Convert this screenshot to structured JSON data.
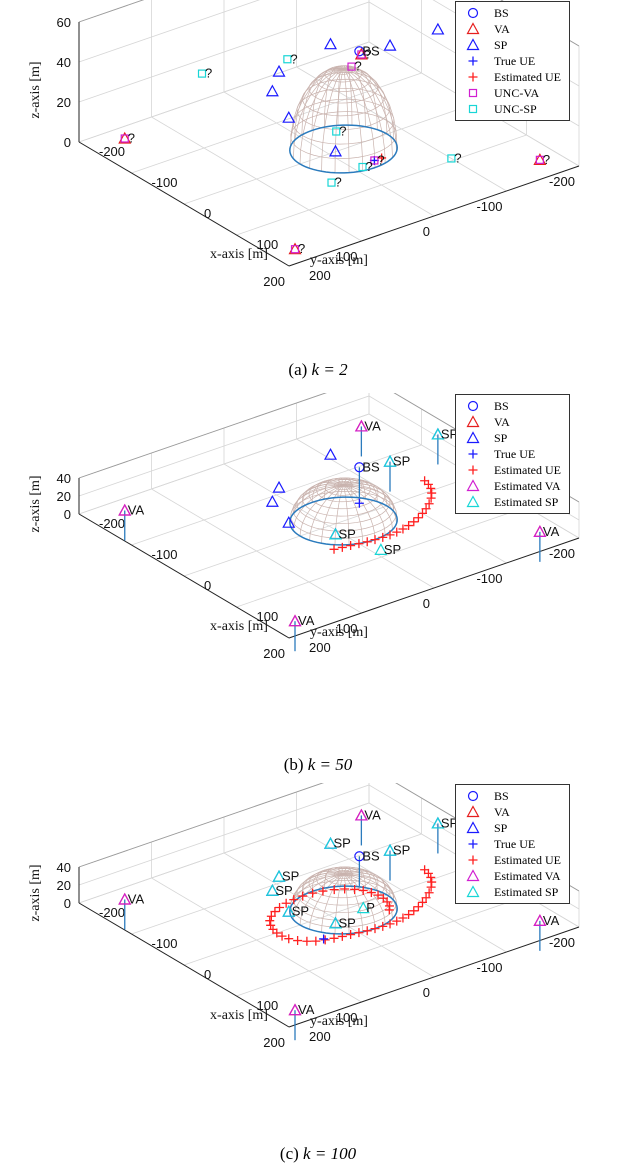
{
  "colors": {
    "BS": "#1a1aff",
    "VA": "#e61e1e",
    "SP": "#1a1aff",
    "TrueUE": "#1a1aff",
    "EstUE": "#ff2020",
    "EstVA": "#d11ed1",
    "EstSP": "#18d6d6",
    "UNCVA": "#d11ed1",
    "UNCSP": "#18d6d6",
    "dome": "#c9b3ae",
    "ring": "#2b7bbd",
    "pole": "#2b7bbd",
    "grid": "#d6d6d6",
    "axis": "#222222"
  },
  "captions": [
    {
      "label": "(a)",
      "math": "k = 2"
    },
    {
      "label": "(b)",
      "math": "k = 50"
    },
    {
      "label": "(c)",
      "math": "k = 100"
    }
  ],
  "chart_data": [
    {
      "type": "scatter3d",
      "xlabel": "x-axis [m]",
      "ylabel": "y-axis [m]",
      "zlabel": "z-axis [m]",
      "xlim": [
        -200,
        200
      ],
      "ylim": [
        -200,
        200
      ],
      "zlim": [
        0,
        60
      ],
      "x_ticks": [
        "-200",
        "-100",
        "0",
        "100",
        "200"
      ],
      "y_ticks": [
        "-200",
        "-100",
        "0",
        "100",
        "200"
      ],
      "z_ticks": [
        "0",
        "20",
        "40",
        "60"
      ],
      "legend": [
        "BS",
        "VA",
        "SP",
        "True UE",
        "Estimated UE",
        "UNC-VA",
        "UNC-SP"
      ],
      "legend_kinds": [
        "BS",
        "VA",
        "SP",
        "TrueUE",
        "EstUE",
        "UNCVA",
        "UNCSP"
      ],
      "annotation": "?",
      "points": [
        {
          "kind": "BS",
          "x": -25,
          "y": -60,
          "z": 40,
          "label": "BS"
        },
        {
          "kind": "VA",
          "x": -180,
          "y": -175,
          "z": 0
        },
        {
          "kind": "VA",
          "x": 170,
          "y": 170,
          "z": 0
        },
        {
          "kind": "VA",
          "x": -175,
          "y": 155,
          "z": 0
        },
        {
          "kind": "VA",
          "x": 160,
          "y": -175,
          "z": 0
        },
        {
          "kind": "SP",
          "x": -15,
          "y": -95,
          "z": 40
        },
        {
          "kind": "SP",
          "x": -40,
          "y": 40,
          "z": 40
        },
        {
          "kind": "SP",
          "x": -25,
          "y": 60,
          "z": 35
        },
        {
          "kind": "SP",
          "x": 20,
          "y": 70,
          "z": 30
        },
        {
          "kind": "SP",
          "x": -80,
          "y": -60,
          "z": 35
        },
        {
          "kind": "SP",
          "x": -55,
          "y": -190,
          "z": 30
        },
        {
          "kind": "SP",
          "x": 40,
          "y": 20,
          "z": 10
        },
        {
          "kind": "TrueUE",
          "x": 45,
          "y": -30,
          "z": 0
        },
        {
          "kind": "EstUE",
          "x": 45,
          "y": -40,
          "z": 0
        },
        {
          "kind": "UNCVA",
          "x": -180,
          "y": -175,
          "z": 0,
          "label": "?"
        },
        {
          "kind": "UNCVA",
          "x": 170,
          "y": 170,
          "z": 0,
          "label": "?"
        },
        {
          "kind": "UNCVA",
          "x": -175,
          "y": 155,
          "z": 0,
          "label": "?"
        },
        {
          "kind": "UNCVA",
          "x": 160,
          "y": -175,
          "z": 0,
          "label": "?"
        },
        {
          "kind": "UNCVA",
          "x": 45,
          "y": -30,
          "z": 0,
          "label": "?"
        },
        {
          "kind": "UNCVA",
          "x": -40,
          "y": -60,
          "z": 30,
          "label": "?"
        },
        {
          "kind": "UNCSP",
          "x": -100,
          "y": -15,
          "z": 30,
          "label": "?"
        },
        {
          "kind": "UNCSP",
          "x": -90,
          "y": 110,
          "z": 40,
          "label": "?"
        },
        {
          "kind": "UNCSP",
          "x": 0,
          "y": -10,
          "z": 10,
          "label": "?"
        },
        {
          "kind": "UNCSP",
          "x": 50,
          "y": -10,
          "z": 0,
          "label": "?"
        },
        {
          "kind": "UNCSP",
          "x": 95,
          "y": -100,
          "z": 0,
          "label": "?"
        },
        {
          "kind": "UNCSP",
          "x": 60,
          "y": 40,
          "z": 0,
          "label": "?"
        }
      ],
      "poles": [],
      "ue_true_track": [],
      "ue_est_track": []
    },
    {
      "type": "scatter3d",
      "xlabel": "x-axis [m]",
      "ylabel": "y-axis [m]",
      "zlabel": "z-axis [m]",
      "xlim": [
        -200,
        200
      ],
      "ylim": [
        -200,
        200
      ],
      "zlim": [
        0,
        40
      ],
      "x_ticks": [
        "-200",
        "-100",
        "0",
        "100",
        "200"
      ],
      "y_ticks": [
        "-200",
        "-100",
        "0",
        "100",
        "200"
      ],
      "z_ticks": [
        "0",
        "20",
        "40"
      ],
      "legend": [
        "BS",
        "VA",
        "SP",
        "True UE",
        "Estimated UE",
        "Estimated VA",
        "Estimated SP"
      ],
      "legend_kinds": [
        "BS",
        "VA",
        "SP",
        "TrueUE",
        "EstUE",
        "EstVA",
        "EstSP"
      ],
      "points": [
        {
          "kind": "BS",
          "x": -25,
          "y": -60,
          "z": 40,
          "label": "BS"
        },
        {
          "kind": "VA",
          "x": -180,
          "y": -175,
          "z": 0
        },
        {
          "kind": "VA",
          "x": 170,
          "y": 170,
          "z": 0
        },
        {
          "kind": "VA",
          "x": -175,
          "y": 155,
          "z": 0
        },
        {
          "kind": "VA",
          "x": 160,
          "y": -175,
          "z": 0
        },
        {
          "kind": "SP",
          "x": -15,
          "y": -95,
          "z": 40
        },
        {
          "kind": "SP",
          "x": -40,
          "y": 40,
          "z": 40
        },
        {
          "kind": "SP",
          "x": -25,
          "y": 60,
          "z": 35
        },
        {
          "kind": "SP",
          "x": 20,
          "y": 70,
          "z": 30
        },
        {
          "kind": "SP",
          "x": -80,
          "y": -60,
          "z": 35
        },
        {
          "kind": "SP",
          "x": -55,
          "y": -190,
          "z": 30
        },
        {
          "kind": "SP",
          "x": 40,
          "y": 20,
          "z": 10
        },
        {
          "kind": "EstVA",
          "x": -180,
          "y": -175,
          "z": 0,
          "label": "VA"
        },
        {
          "kind": "EstVA",
          "x": 170,
          "y": 170,
          "z": 0,
          "label": "VA"
        },
        {
          "kind": "EstVA",
          "x": -175,
          "y": 155,
          "z": 0,
          "label": "VA"
        },
        {
          "kind": "EstVA",
          "x": 160,
          "y": -175,
          "z": 0,
          "label": "VA"
        },
        {
          "kind": "EstSP",
          "x": -15,
          "y": -95,
          "z": 40,
          "label": "SP"
        },
        {
          "kind": "EstSP",
          "x": -55,
          "y": -190,
          "z": 30,
          "label": "SP"
        },
        {
          "kind": "EstSP",
          "x": 40,
          "y": 20,
          "z": 10,
          "label": "SP"
        },
        {
          "kind": "EstSP",
          "x": 85,
          "y": -10,
          "z": 0,
          "label": "SP"
        }
      ],
      "poles": [
        {
          "x": -180,
          "y": -175,
          "z": 0
        },
        {
          "x": 170,
          "y": 170,
          "z": 0
        },
        {
          "x": -175,
          "y": 155,
          "z": 0
        },
        {
          "x": 160,
          "y": -175,
          "z": 0
        },
        {
          "x": -25,
          "y": -60,
          "z": 40
        },
        {
          "x": -55,
          "y": -190,
          "z": 30
        },
        {
          "x": -15,
          "y": -95,
          "z": 40
        }
      ],
      "ue_true_track": [
        [
          -25,
          -60,
          0
        ]
      ],
      "ue_est_track": [
        [
          -25,
          -150,
          0
        ],
        [
          -15,
          -148,
          0
        ],
        [
          -5,
          -144,
          0
        ],
        [
          5,
          -138,
          0
        ],
        [
          15,
          -130,
          0
        ],
        [
          25,
          -120,
          0
        ],
        [
          33,
          -110,
          0
        ],
        [
          40,
          -100,
          0
        ],
        [
          46,
          -90,
          0
        ],
        [
          51,
          -80,
          0
        ],
        [
          55,
          -70,
          0
        ],
        [
          58,
          -60,
          0
        ],
        [
          60,
          -50,
          0
        ],
        [
          61,
          -40,
          0
        ],
        [
          61,
          -30,
          0
        ],
        [
          60,
          -20,
          0
        ],
        [
          59,
          -10,
          0
        ],
        [
          57,
          0,
          0
        ],
        [
          55,
          10,
          0
        ],
        [
          53,
          20,
          0
        ],
        [
          51,
          30,
          0
        ]
      ]
    },
    {
      "type": "scatter3d",
      "xlabel": "x-axis [m]",
      "ylabel": "y-axis [m]",
      "zlabel": "z-axis [m]",
      "xlim": [
        -200,
        200
      ],
      "ylim": [
        -200,
        200
      ],
      "zlim": [
        0,
        40
      ],
      "x_ticks": [
        "-200",
        "-100",
        "0",
        "100",
        "200"
      ],
      "y_ticks": [
        "-200",
        "-100",
        "0",
        "100",
        "200"
      ],
      "z_ticks": [
        "0",
        "20",
        "40"
      ],
      "legend": [
        "BS",
        "VA",
        "SP",
        "True UE",
        "Estimated UE",
        "Estimated VA",
        "Estimated SP"
      ],
      "legend_kinds": [
        "BS",
        "VA",
        "SP",
        "TrueUE",
        "EstUE",
        "EstVA",
        "EstSP"
      ],
      "points": [
        {
          "kind": "BS",
          "x": -25,
          "y": -60,
          "z": 40,
          "label": "BS"
        },
        {
          "kind": "VA",
          "x": -180,
          "y": -175,
          "z": 0
        },
        {
          "kind": "VA",
          "x": 170,
          "y": 170,
          "z": 0
        },
        {
          "kind": "VA",
          "x": -175,
          "y": 155,
          "z": 0
        },
        {
          "kind": "VA",
          "x": 160,
          "y": -175,
          "z": 0
        },
        {
          "kind": "SP",
          "x": -15,
          "y": -95,
          "z": 40
        },
        {
          "kind": "SP",
          "x": -40,
          "y": 40,
          "z": 40
        },
        {
          "kind": "SP",
          "x": -25,
          "y": 60,
          "z": 35
        },
        {
          "kind": "SP",
          "x": 20,
          "y": 70,
          "z": 30
        },
        {
          "kind": "SP",
          "x": -80,
          "y": -60,
          "z": 35
        },
        {
          "kind": "SP",
          "x": -55,
          "y": -190,
          "z": 30
        },
        {
          "kind": "SP",
          "x": 40,
          "y": 20,
          "z": 10
        },
        {
          "kind": "EstVA",
          "x": -180,
          "y": -175,
          "z": 0,
          "label": "VA"
        },
        {
          "kind": "EstVA",
          "x": 170,
          "y": 170,
          "z": 0,
          "label": "VA"
        },
        {
          "kind": "EstVA",
          "x": -175,
          "y": 155,
          "z": 0,
          "label": "VA"
        },
        {
          "kind": "EstVA",
          "x": 160,
          "y": -175,
          "z": 0,
          "label": "VA"
        },
        {
          "kind": "EstSP",
          "x": -15,
          "y": -95,
          "z": 40,
          "label": "SP"
        },
        {
          "kind": "EstSP",
          "x": -40,
          "y": 40,
          "z": 40,
          "label": "SP"
        },
        {
          "kind": "EstSP",
          "x": -25,
          "y": 60,
          "z": 35,
          "label": "SP"
        },
        {
          "kind": "EstSP",
          "x": -80,
          "y": -60,
          "z": 35,
          "label": "SP"
        },
        {
          "kind": "EstSP",
          "x": -55,
          "y": -190,
          "z": 30,
          "label": "SP"
        },
        {
          "kind": "EstSP",
          "x": 40,
          "y": 20,
          "z": 10,
          "label": "SP"
        },
        {
          "kind": "EstSP",
          "x": 20,
          "y": 70,
          "z": 30,
          "label": "SP"
        },
        {
          "kind": "EstSP",
          "x": 10,
          "y": -40,
          "z": 0,
          "label": "P"
        }
      ],
      "poles": [
        {
          "x": -180,
          "y": -175,
          "z": 0
        },
        {
          "x": 170,
          "y": 170,
          "z": 0
        },
        {
          "x": -175,
          "y": 155,
          "z": 0
        },
        {
          "x": 160,
          "y": -175,
          "z": 0
        },
        {
          "x": -25,
          "y": -60,
          "z": 40
        },
        {
          "x": -55,
          "y": -190,
          "z": 30
        },
        {
          "x": -15,
          "y": -95,
          "z": 40
        }
      ],
      "ue_true_track": [
        [
          45,
          40,
          0
        ]
      ],
      "ue_est_track": [
        [
          -25,
          -150,
          0
        ],
        [
          -15,
          -148,
          0
        ],
        [
          -5,
          -144,
          0
        ],
        [
          5,
          -138,
          0
        ],
        [
          15,
          -130,
          0
        ],
        [
          25,
          -120,
          0
        ],
        [
          33,
          -110,
          0
        ],
        [
          40,
          -100,
          0
        ],
        [
          46,
          -90,
          0
        ],
        [
          51,
          -80,
          0
        ],
        [
          55,
          -70,
          0
        ],
        [
          58,
          -60,
          0
        ],
        [
          60,
          -50,
          0
        ],
        [
          61,
          -40,
          0
        ],
        [
          61,
          -30,
          0
        ],
        [
          60,
          -20,
          0
        ],
        [
          59,
          -10,
          0
        ],
        [
          57,
          0,
          0
        ],
        [
          55,
          10,
          0
        ],
        [
          53,
          20,
          0
        ],
        [
          51,
          30,
          0
        ],
        [
          48,
          40,
          0
        ],
        [
          44,
          50,
          0
        ],
        [
          38,
          58,
          0
        ],
        [
          30,
          65,
          0
        ],
        [
          20,
          70,
          0
        ],
        [
          10,
          72,
          0
        ],
        [
          0,
          72,
          0
        ],
        [
          -10,
          70,
          0
        ],
        [
          -20,
          66,
          0
        ],
        [
          -30,
          60,
          0
        ],
        [
          -38,
          52,
          0
        ],
        [
          -45,
          42,
          0
        ],
        [
          -50,
          32,
          0
        ],
        [
          -54,
          20,
          0
        ],
        [
          -56,
          8,
          0
        ],
        [
          -57,
          -5,
          0
        ],
        [
          -56,
          -18,
          0
        ],
        [
          -53,
          -30,
          0
        ],
        [
          -48,
          -42,
          0
        ],
        [
          -42,
          -52,
          0
        ],
        [
          -34,
          -60,
          0
        ],
        [
          -26,
          -66,
          0
        ],
        [
          -16,
          -70,
          0
        ],
        [
          -6,
          -72,
          0
        ],
        [
          4,
          -72,
          0
        ],
        [
          14,
          -70,
          0
        ],
        [
          24,
          -66,
          0
        ],
        [
          32,
          -60,
          0
        ]
      ]
    }
  ]
}
